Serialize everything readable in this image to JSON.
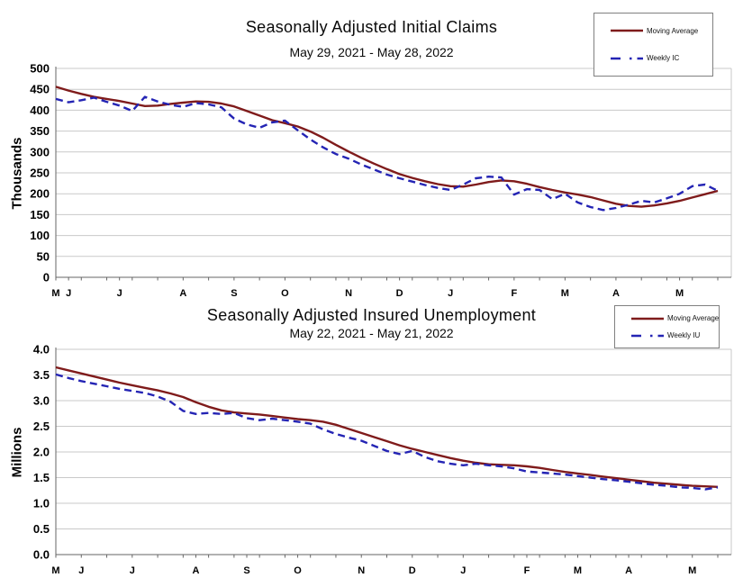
{
  "page": {
    "background_color": "#ffffff",
    "grid_color": "#c9c9c9",
    "axis_color": "#666666"
  },
  "chart_data": [
    {
      "type": "line",
      "title": "Seasonally Adjusted Initial Claims",
      "subtitle": "May 29, 2021 - May 28, 2022",
      "ylabel": "Thousands",
      "ylim": [
        0,
        500
      ],
      "grid": true,
      "legend_position": "top-right",
      "ytick_values": [
        500,
        450,
        400,
        350,
        300,
        250,
        200,
        150,
        100,
        50,
        0
      ],
      "ytick_labels": [
        "500",
        "450",
        "400",
        "350",
        "300",
        "250",
        "200",
        "150",
        "100",
        "50",
        "0"
      ],
      "xtick_labels": [
        "M",
        "J",
        "J",
        "A",
        "S",
        "O",
        "N",
        "D",
        "J",
        "F",
        "M",
        "A",
        "M"
      ],
      "xtick_positions": [
        0,
        1,
        5,
        10,
        14,
        18,
        23,
        27,
        31,
        36,
        40,
        44,
        49
      ],
      "series": [
        {
          "name": "Moving Average",
          "color": "#7f1b1b",
          "style": "solid",
          "values": [
            456,
            447,
            439,
            432,
            427,
            422,
            416,
            410,
            411,
            415,
            418,
            421,
            420,
            416,
            409,
            398,
            387,
            376,
            369,
            361,
            349,
            334,
            317,
            301,
            286,
            272,
            259,
            247,
            238,
            230,
            223,
            218,
            217,
            222,
            228,
            232,
            230,
            224,
            216,
            209,
            203,
            198,
            192,
            184,
            176,
            171,
            169,
            172,
            177,
            183,
            191,
            199,
            207
          ]
        },
        {
          "name": "Weekly IC",
          "color": "#2424b4",
          "style": "dashed",
          "values": [
            427,
            419,
            424,
            430,
            420,
            411,
            398,
            432,
            421,
            413,
            408,
            417,
            414,
            407,
            380,
            366,
            358,
            371,
            375,
            352,
            330,
            311,
            295,
            284,
            270,
            258,
            246,
            237,
            229,
            221,
            214,
            209,
            222,
            237,
            241,
            239,
            198,
            211,
            209,
            187,
            200,
            179,
            168,
            161,
            166,
            174,
            183,
            179,
            189,
            200,
            218,
            222,
            207
          ]
        }
      ]
    },
    {
      "type": "line",
      "title": "Seasonally Adjusted Insured Unemployment",
      "subtitle": "May 22, 2021 - May 21, 2022",
      "ylabel": "Millions",
      "ylim": [
        0,
        4
      ],
      "grid": true,
      "legend_position": "top-right",
      "ytick_values": [
        4.0,
        3.5,
        3.0,
        2.5,
        2.0,
        1.5,
        1.0,
        0.5,
        0.0
      ],
      "ytick_labels": [
        "4.0",
        "3.5",
        "3.0",
        "2.5",
        "2.0",
        "1.5",
        "1.0",
        "0.5",
        "0.0"
      ],
      "xtick_labels": [
        "M",
        "J",
        "J",
        "A",
        "S",
        "O",
        "N",
        "D",
        "J",
        "F",
        "M",
        "A",
        "M"
      ],
      "xtick_positions": [
        0,
        2,
        6,
        11,
        15,
        19,
        24,
        28,
        32,
        37,
        41,
        45,
        50
      ],
      "series": [
        {
          "name": "Moving Average",
          "color": "#7f1b1b",
          "style": "solid",
          "values": [
            3.65,
            3.59,
            3.53,
            3.47,
            3.41,
            3.35,
            3.3,
            3.25,
            3.2,
            3.14,
            3.07,
            2.97,
            2.88,
            2.81,
            2.77,
            2.75,
            2.73,
            2.7,
            2.67,
            2.64,
            2.62,
            2.59,
            2.53,
            2.45,
            2.37,
            2.29,
            2.21,
            2.13,
            2.06,
            2.0,
            1.94,
            1.88,
            1.83,
            1.79,
            1.76,
            1.75,
            1.74,
            1.72,
            1.69,
            1.65,
            1.61,
            1.58,
            1.55,
            1.52,
            1.49,
            1.46,
            1.43,
            1.4,
            1.38,
            1.36,
            1.34,
            1.33,
            1.32
          ]
        },
        {
          "name": "Weekly IU",
          "color": "#2424b4",
          "style": "dashed",
          "values": [
            3.51,
            3.44,
            3.38,
            3.33,
            3.28,
            3.23,
            3.19,
            3.15,
            3.08,
            2.98,
            2.8,
            2.74,
            2.76,
            2.74,
            2.76,
            2.66,
            2.62,
            2.65,
            2.62,
            2.59,
            2.55,
            2.44,
            2.35,
            2.28,
            2.22,
            2.12,
            2.02,
            1.96,
            2.02,
            1.9,
            1.82,
            1.77,
            1.74,
            1.77,
            1.74,
            1.72,
            1.68,
            1.62,
            1.6,
            1.58,
            1.56,
            1.53,
            1.5,
            1.47,
            1.45,
            1.42,
            1.39,
            1.36,
            1.34,
            1.31,
            1.3,
            1.27,
            1.31
          ]
        }
      ]
    }
  ]
}
